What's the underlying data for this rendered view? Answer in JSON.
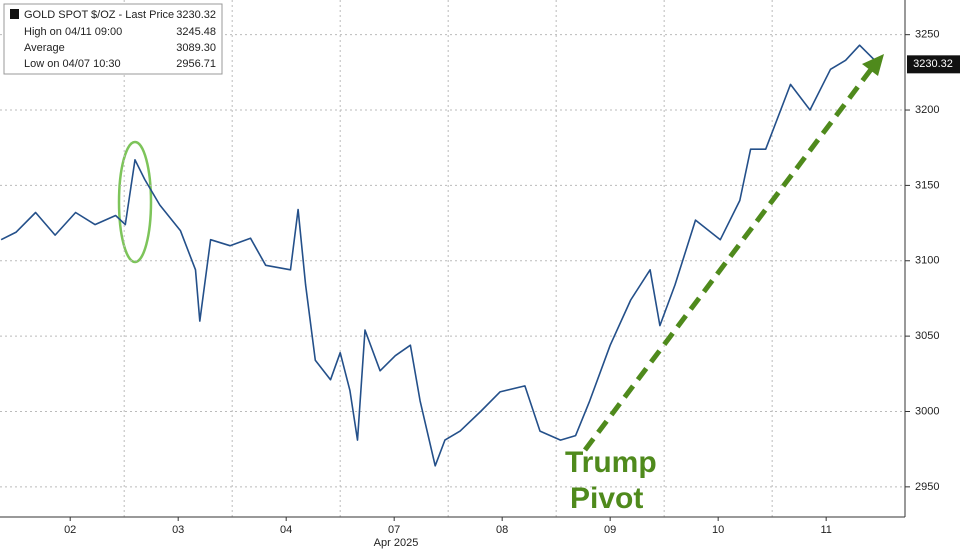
{
  "chart_data": {
    "type": "line",
    "legend": {
      "title": "GOLD SPOT $/OZ - Last Price",
      "last_price": 3230.32,
      "rows": [
        {
          "label": "High on 04/11 09:00",
          "value": 3245.48
        },
        {
          "label": "Average",
          "value": {
            "value": 3089.3,
            "label": "3089.30"
          }
        },
        {
          "label": "Low on 04/07 10:30",
          "value": 2956.71
        }
      ]
    },
    "annotation": [
      "Trump",
      "Pivot"
    ],
    "xlabel": "Apr 2025",
    "xlim": [
      -0.15,
      8.23
    ],
    "xticks": [
      {
        "value": 0.5,
        "label": "02"
      },
      {
        "value": 1.5,
        "label": "03"
      },
      {
        "value": 2.5,
        "label": "04"
      },
      {
        "value": 3.5,
        "label": "07"
      },
      {
        "value": 4.5,
        "label": "08"
      },
      {
        "value": 5.5,
        "label": "09"
      },
      {
        "value": 6.5,
        "label": "10"
      },
      {
        "value": 7.5,
        "label": "11"
      }
    ],
    "ylim": [
      2930,
      3273
    ],
    "yticks": [
      2950,
      3000,
      3050,
      3100,
      3150,
      3200,
      3250
    ],
    "grid": true,
    "series": [
      {
        "name": "GOLD SPOT $/OZ",
        "color": "#24508a",
        "x": [
          -0.14,
          0,
          0.18,
          0.36,
          0.55,
          0.73,
          0.92,
          1.01,
          1.1,
          1.19,
          1.33,
          1.52,
          1.66,
          1.7,
          1.8,
          1.98,
          2.17,
          2.31,
          2.54,
          2.61,
          2.68,
          2.77,
          2.91,
          3.0,
          3.09,
          3.16,
          3.23,
          3.37,
          3.51,
          3.65,
          3.74,
          3.88,
          3.97,
          4.11,
          4.3,
          4.48,
          4.71,
          4.85,
          5.04,
          5.18,
          5.31,
          5.5,
          5.69,
          5.87,
          5.96,
          6.1,
          6.29,
          6.52,
          6.7,
          6.8,
          6.94,
          7.17,
          7.35,
          7.54,
          7.68,
          7.81,
          7.95
        ],
        "values": [
          3114,
          3119,
          3132,
          3117,
          3132,
          3124,
          3130,
          3124,
          3167,
          3154,
          3137,
          3120,
          3094,
          3060,
          3114,
          3110,
          3115,
          3097,
          3094,
          3134,
          3084,
          3034,
          3021,
          3039,
          3014,
          2981,
          3054,
          3027,
          3037,
          3044,
          3007,
          2964,
          2981,
          2987,
          3000,
          3013,
          3017,
          2987,
          2981,
          2984,
          3007,
          3044,
          3074,
          3094,
          3057,
          3084,
          3127,
          3114,
          3140,
          3174,
          3174,
          3217,
          3200,
          3227,
          3233,
          3243,
          3233
        ]
      }
    ]
  }
}
